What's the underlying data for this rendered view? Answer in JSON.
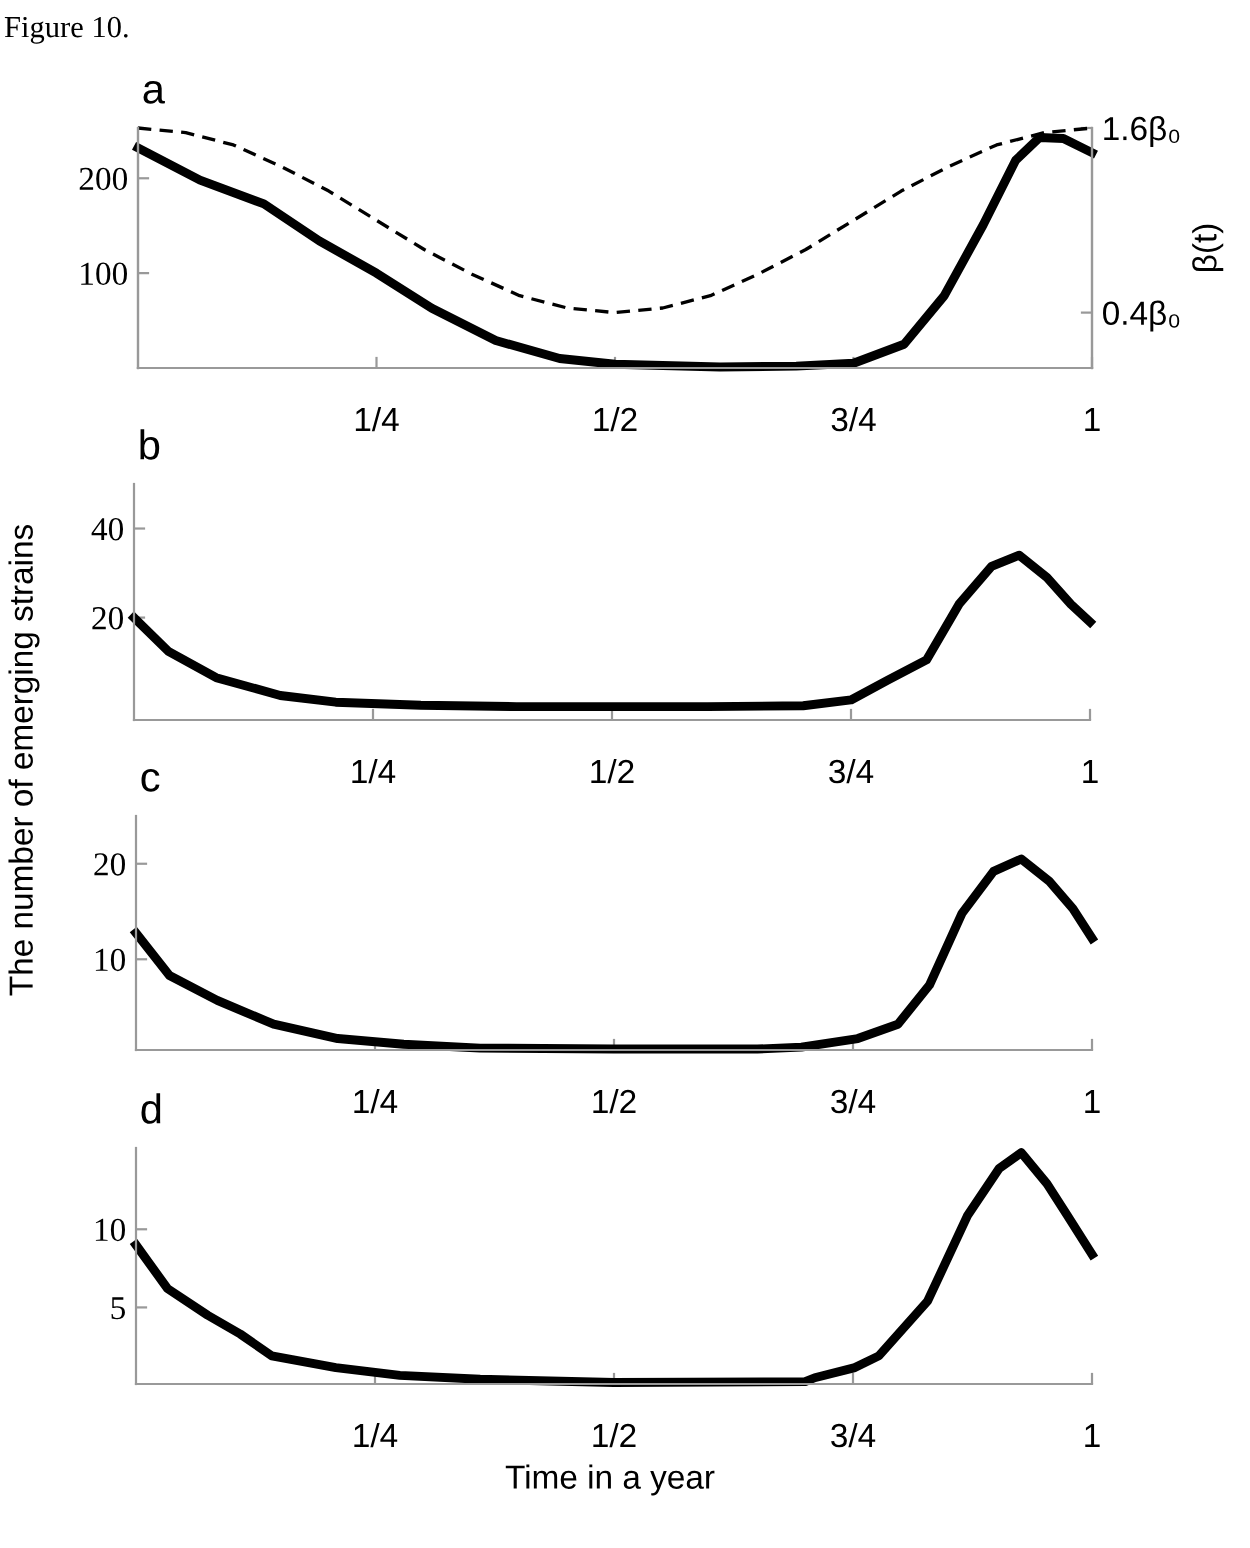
{
  "chart_data": [
    {
      "type": "line",
      "title": "a",
      "annotations": [
        "Figure 10."
      ],
      "y2label": "β(t)",
      "xlim": [
        0,
        1
      ],
      "ylim": [
        0,
        253
      ],
      "y2lim": [
        0.04,
        1.6
      ],
      "xticks": [
        {
          "value": 0.25,
          "label": "1/4"
        },
        {
          "value": 0.5,
          "label": "1/2"
        },
        {
          "value": 0.75,
          "label": "3/4"
        },
        1
      ],
      "yticks": [
        100,
        200
      ],
      "y2ticks": [
        {
          "value": 0.4,
          "label": "0.4β₀"
        },
        {
          "value": 1.6,
          "label": "1.6β₀"
        }
      ],
      "grid": false,
      "legend": false,
      "series": [
        {
          "color": "#000000",
          "line_style": "solid",
          "x": [
            0,
            0.065,
            0.132,
            0.19,
            0.25,
            0.308,
            0.375,
            0.442,
            0.5,
            0.61,
            0.69,
            0.75,
            0.803,
            0.845,
            0.886,
            0.92,
            0.945,
            0.97,
            1
          ],
          "values": [
            232,
            198,
            173,
            134,
            100,
            63,
            29,
            10,
            4,
            1,
            2,
            5,
            25,
            76,
            151,
            219,
            243,
            242,
            227
          ]
        },
        {
          "color": "#000000",
          "line_style": "dashed",
          "axis": "y2",
          "x": [
            0,
            0.05,
            0.1,
            0.15,
            0.2,
            0.25,
            0.3,
            0.35,
            0.4,
            0.45,
            0.5,
            0.55,
            0.6,
            0.65,
            0.7,
            0.75,
            0.8,
            0.85,
            0.9,
            0.95,
            1
          ],
          "values": [
            1.6,
            1.57,
            1.49,
            1.35,
            1.19,
            1.0,
            0.81,
            0.65,
            0.51,
            0.43,
            0.4,
            0.43,
            0.51,
            0.65,
            0.81,
            1.0,
            1.19,
            1.35,
            1.49,
            1.57,
            1.6
          ]
        }
      ]
    },
    {
      "type": "line",
      "title": "b",
      "xlim": [
        0,
        1
      ],
      "ylim": [
        -3,
        50
      ],
      "xticks": [
        {
          "value": 0.25,
          "label": "1/4"
        },
        {
          "value": 0.5,
          "label": "1/2"
        },
        {
          "value": 0.75,
          "label": "3/4"
        },
        1
      ],
      "yticks": [
        20,
        40
      ],
      "grid": false,
      "legend": false,
      "series": [
        {
          "color": "#000000",
          "line_style": "solid",
          "x": [
            0,
            0.036,
            0.086,
            0.153,
            0.211,
            0.3,
            0.4,
            0.5,
            0.6,
            0.7,
            0.75,
            0.789,
            0.829,
            0.863,
            0.897,
            0.926,
            0.955,
            0.98,
            1
          ],
          "values": [
            20,
            12.4,
            6.5,
            2.5,
            1,
            0.3,
            0,
            0,
            0,
            0.2,
            1.5,
            6,
            10.5,
            23,
            31.5,
            34,
            29,
            23,
            19
          ]
        }
      ]
    },
    {
      "type": "line",
      "title": "c",
      "ylabel": "The number of emerging strains",
      "xlim": [
        0,
        1
      ],
      "ylim": [
        0.5,
        25
      ],
      "xticks": [
        {
          "value": 0.25,
          "label": "1/4"
        },
        {
          "value": 0.5,
          "label": "1/2"
        },
        {
          "value": 0.75,
          "label": "3/4"
        },
        1
      ],
      "yticks": [
        10,
        20
      ],
      "grid": false,
      "legend": false,
      "series": [
        {
          "color": "#000000",
          "line_style": "solid",
          "x": [
            0,
            0.035,
            0.085,
            0.144,
            0.211,
            0.28,
            0.36,
            0.5,
            0.65,
            0.696,
            0.755,
            0.797,
            0.83,
            0.864,
            0.897,
            0.926,
            0.955,
            0.98,
            1
          ],
          "values": [
            12.75,
            8.3,
            5.7,
            3.2,
            1.7,
            1.1,
            0.7,
            0.6,
            0.6,
            0.8,
            1.7,
            3.2,
            7.3,
            14.8,
            19.2,
            20.5,
            18.2,
            15.3,
            12.2
          ]
        }
      ]
    },
    {
      "type": "line",
      "title": "d",
      "xlabel": "Time in a year",
      "xlim": [
        0,
        1
      ],
      "ylim": [
        0.1,
        15.2
      ],
      "xticks": [
        {
          "value": 0.25,
          "label": "1/4"
        },
        {
          "value": 0.5,
          "label": "1/2"
        },
        {
          "value": 0.75,
          "label": "3/4"
        },
        1
      ],
      "yticks": [
        5,
        10
      ],
      "grid": false,
      "legend": false,
      "series": [
        {
          "color": "#000000",
          "line_style": "solid",
          "x": [
            0,
            0.033,
            0.075,
            0.109,
            0.142,
            0.209,
            0.276,
            0.36,
            0.5,
            0.7,
            0.71,
            0.752,
            0.777,
            0.828,
            0.87,
            0.903,
            0.926,
            0.953,
            0.974,
            1
          ],
          "values": [
            9,
            6.2,
            4.5,
            3.3,
            1.9,
            1.15,
            0.65,
            0.4,
            0.2,
            0.25,
            0.5,
            1.15,
            1.9,
            5.4,
            10.9,
            13.9,
            14.9,
            12.9,
            10.9,
            8.4
          ]
        }
      ]
    }
  ]
}
